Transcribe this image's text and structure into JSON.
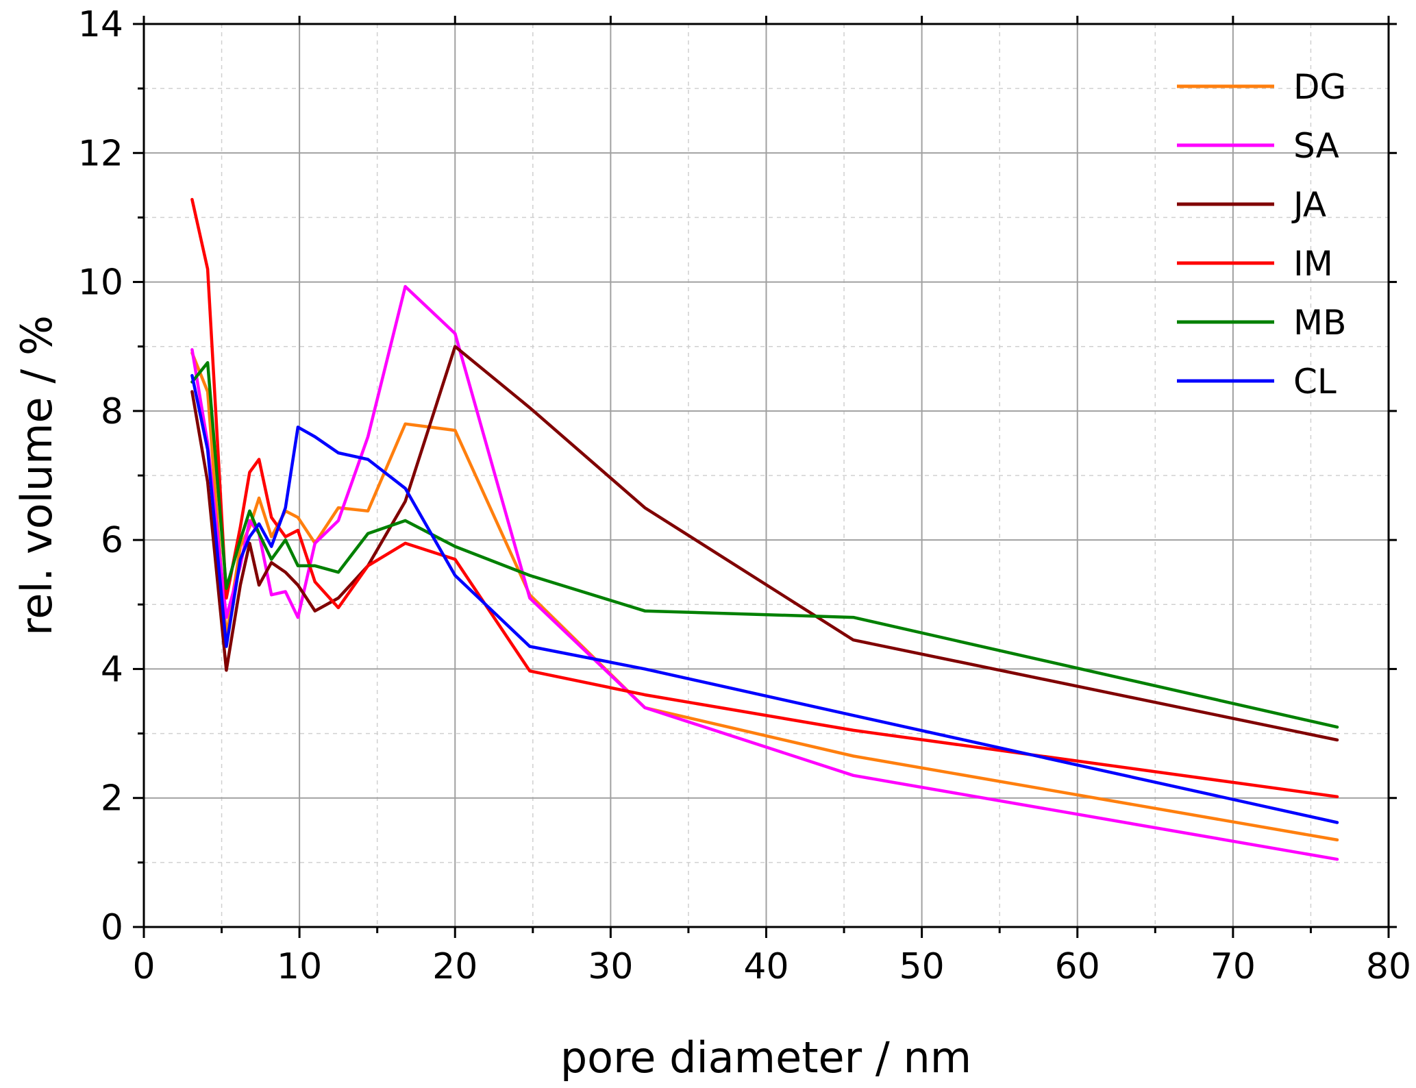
{
  "chart_data": {
    "type": "line",
    "xlabel": "pore diameter / nm",
    "ylabel": "rel. volume / %",
    "xlim": [
      0,
      80
    ],
    "ylim": [
      0,
      14
    ],
    "xticks": [
      "0",
      "10",
      "20",
      "30",
      "40",
      "50",
      "60",
      "70",
      "80"
    ],
    "yticks": [
      "0",
      "2",
      "4",
      "6",
      "8",
      "10",
      "12",
      "14"
    ],
    "grid": true,
    "legend_position": "top-right",
    "series": [
      {
        "name": "DG",
        "color": "#ff7f0e",
        "x": [
          3.1,
          4.1,
          5.3,
          6.2,
          6.8,
          7.4,
          8.2,
          9.1,
          9.9,
          11.0,
          12.5,
          14.4,
          16.8,
          20.0,
          24.8,
          32.2,
          45.6,
          76.7
        ],
        "y": [
          8.9,
          8.3,
          4.5,
          5.9,
          6.2,
          6.65,
          6.05,
          6.45,
          6.35,
          5.95,
          6.5,
          6.45,
          7.8,
          7.7,
          5.15,
          3.4,
          2.65,
          1.35
        ]
      },
      {
        "name": "SA",
        "color": "#ff00ff",
        "x": [
          3.1,
          4.1,
          5.3,
          6.2,
          6.8,
          7.4,
          8.2,
          9.1,
          9.9,
          11.0,
          12.5,
          14.4,
          16.8,
          20.0,
          24.8,
          32.2,
          45.6,
          76.7
        ],
        "y": [
          8.95,
          7.5,
          4.8,
          5.6,
          6.3,
          6.1,
          5.15,
          5.2,
          4.8,
          5.95,
          6.3,
          7.6,
          9.93,
          9.2,
          5.1,
          3.4,
          2.35,
          1.05
        ]
      },
      {
        "name": "JA",
        "color": "#800000",
        "x": [
          3.1,
          4.1,
          5.3,
          6.2,
          6.8,
          7.4,
          8.2,
          9.1,
          9.9,
          11.0,
          12.5,
          14.4,
          16.8,
          20.0,
          24.8,
          32.2,
          45.6,
          76.7
        ],
        "y": [
          8.3,
          6.9,
          3.98,
          5.3,
          5.95,
          5.3,
          5.65,
          5.5,
          5.3,
          4.9,
          5.1,
          5.6,
          6.6,
          9.0,
          8.05,
          6.5,
          4.45,
          2.9
        ]
      },
      {
        "name": "IM",
        "color": "#ff0000",
        "x": [
          3.1,
          4.1,
          5.3,
          6.2,
          6.8,
          7.4,
          8.2,
          9.1,
          9.9,
          11.0,
          12.5,
          14.4,
          16.8,
          20.0,
          24.8,
          32.2,
          45.6,
          76.7
        ],
        "y": [
          11.28,
          10.2,
          5.1,
          6.2,
          7.05,
          7.25,
          6.35,
          6.05,
          6.15,
          5.35,
          4.95,
          5.6,
          5.95,
          5.7,
          3.97,
          3.6,
          3.05,
          2.02
        ]
      },
      {
        "name": "MB",
        "color": "#008000",
        "x": [
          3.1,
          4.1,
          5.3,
          6.2,
          6.8,
          7.4,
          8.2,
          9.1,
          9.9,
          11.0,
          12.5,
          14.4,
          16.8,
          20.0,
          24.8,
          32.2,
          45.6,
          76.7
        ],
        "y": [
          8.45,
          8.75,
          5.25,
          6.0,
          6.45,
          6.1,
          5.7,
          6.0,
          5.6,
          5.6,
          5.5,
          6.1,
          6.3,
          5.9,
          5.45,
          4.9,
          4.8,
          3.1
        ]
      },
      {
        "name": "CL",
        "color": "#0000ff",
        "x": [
          3.1,
          4.1,
          5.3,
          6.2,
          6.8,
          7.4,
          8.2,
          9.1,
          9.9,
          11.0,
          12.5,
          14.4,
          16.8,
          20.0,
          24.8,
          32.2,
          45.6,
          76.7
        ],
        "y": [
          8.55,
          7.4,
          4.35,
          5.7,
          6.05,
          6.25,
          5.9,
          6.5,
          7.75,
          7.6,
          7.35,
          7.25,
          6.8,
          5.45,
          4.35,
          4.0,
          3.28,
          1.62
        ]
      }
    ]
  }
}
